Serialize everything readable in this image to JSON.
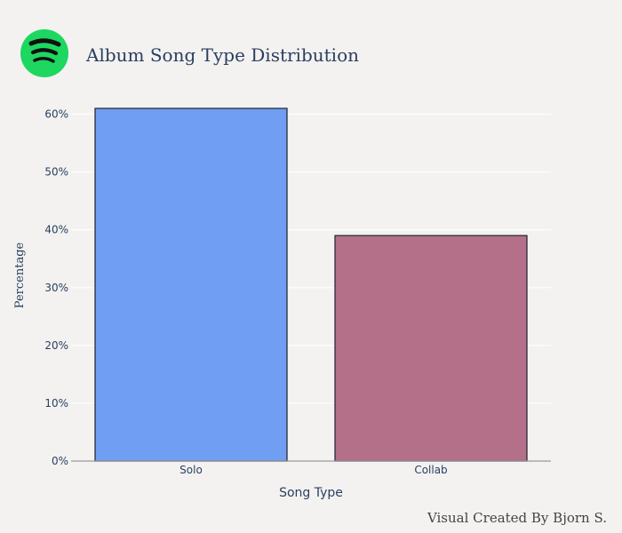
{
  "logo": {
    "icon": "spotify-logo",
    "color": "#1ed760",
    "wave_color": "#111111"
  },
  "chart_data": {
    "type": "bar",
    "title": "Album Song Type Distribution",
    "xlabel": "Song Type",
    "ylabel": "Percentage",
    "categories": [
      "Solo",
      "Collab"
    ],
    "values": [
      61,
      39
    ],
    "colors": [
      "#6f9ef3",
      "#b47089"
    ],
    "ylim": [
      0,
      63
    ],
    "yticks": [
      0,
      10,
      20,
      30,
      40,
      50,
      60
    ],
    "ytick_suffix": "%",
    "grid": true,
    "legend": "none"
  },
  "footer": {
    "credit": "Visual Created By Bjorn S."
  },
  "colors": {
    "background": "#f3f2f1",
    "text": "#2a3f5f"
  }
}
